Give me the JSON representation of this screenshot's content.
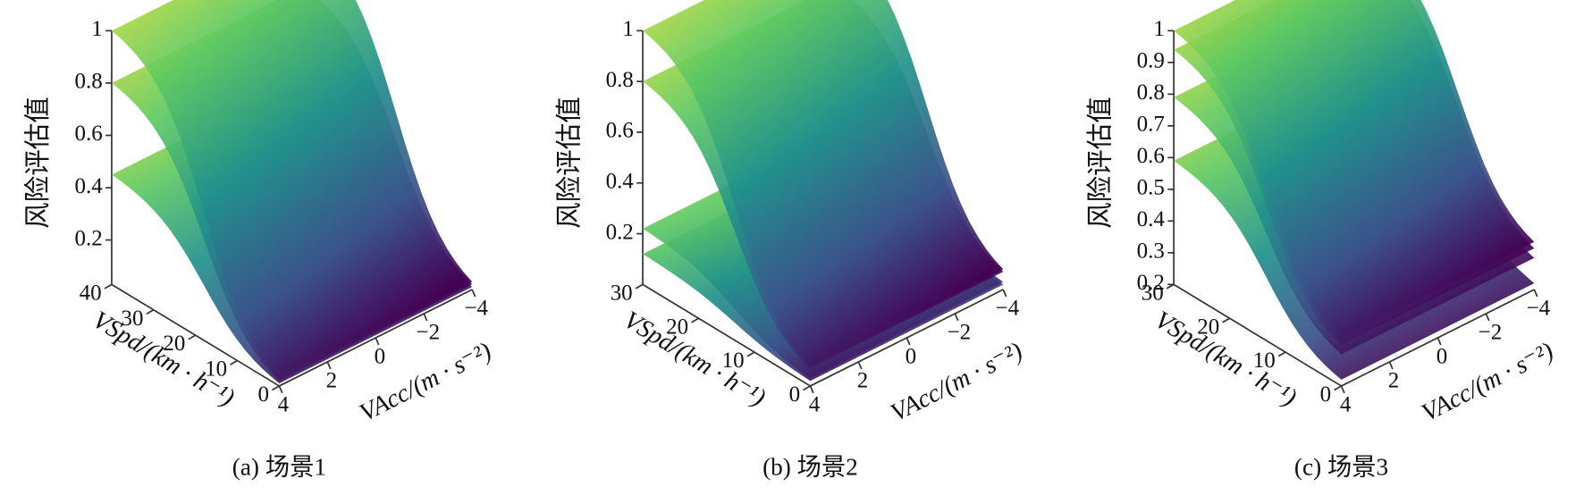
{
  "chart_data": [
    {
      "type": "surface",
      "caption": "(a) 场景1",
      "zlabel": "风险评估值",
      "ylabel": "VSpd/(km · h⁻¹)",
      "xlabel": "VAcc/(m · s⁻²)",
      "zlim": [
        0.03,
        1.0
      ],
      "zticks": [
        0.2,
        0.4,
        0.6,
        0.8,
        1.0
      ],
      "ylim": [
        0,
        40
      ],
      "yticks": [
        0,
        10,
        20,
        30,
        40
      ],
      "xlim": [
        -4,
        4
      ],
      "xticks": [
        {
          "value": -4,
          "label": "−4"
        },
        {
          "value": -2,
          "label": "−2"
        },
        0,
        2,
        4
      ],
      "surfaces": [
        {
          "values": [
            0.45,
            0.04
          ]
        },
        {
          "values": [
            0.8,
            0.05
          ]
        },
        {
          "values": [
            1.0,
            0.06
          ]
        }
      ]
    },
    {
      "type": "surface",
      "caption": "(b) 场景2",
      "zlabel": "风险评估值",
      "ylabel": "VSpd/(km · h⁻¹)",
      "xlabel": "VAcc/(m · s⁻²)",
      "zlim": [
        0.0,
        1.0
      ],
      "zticks": [
        0.2,
        0.4,
        0.6,
        0.8,
        1.0
      ],
      "ylim": [
        0,
        30
      ],
      "yticks": [
        0,
        10,
        20,
        30
      ],
      "xlim": [
        -4,
        4
      ],
      "xticks": [
        {
          "value": -4,
          "label": "−4"
        },
        {
          "value": -2,
          "label": "−2"
        },
        0,
        2,
        4
      ],
      "surfaces": [
        {
          "values": [
            0.12,
            0.02
          ]
        },
        {
          "values": [
            0.22,
            0.03
          ]
        },
        {
          "values": [
            0.8,
            0.07
          ]
        },
        {
          "values": [
            1.0,
            0.08
          ]
        }
      ]
    },
    {
      "type": "surface",
      "caption": "(c) 场景3",
      "zlabel": "风险评估值",
      "ylabel": "VSpd/(km · h⁻¹)",
      "xlabel": "VAcc/(m · s⁻²)",
      "zlim": [
        0.2,
        1.0
      ],
      "zticks": [
        0.2,
        0.3,
        0.4,
        0.5,
        0.6,
        0.7,
        0.8,
        0.9,
        1.0
      ],
      "ylim": [
        0,
        30
      ],
      "yticks": [
        0,
        10,
        20,
        30
      ],
      "xlim": [
        -4,
        4
      ],
      "xticks": [
        {
          "value": -4,
          "label": "−4"
        },
        {
          "value": -2,
          "label": "−2"
        },
        0,
        2,
        4
      ],
      "surfaces": [
        {
          "values": [
            0.59,
            0.22
          ]
        },
        {
          "values": [
            0.79,
            0.3
          ]
        },
        {
          "values": [
            0.94,
            0.33
          ]
        },
        {
          "values": [
            1.0,
            0.35
          ]
        }
      ]
    }
  ]
}
